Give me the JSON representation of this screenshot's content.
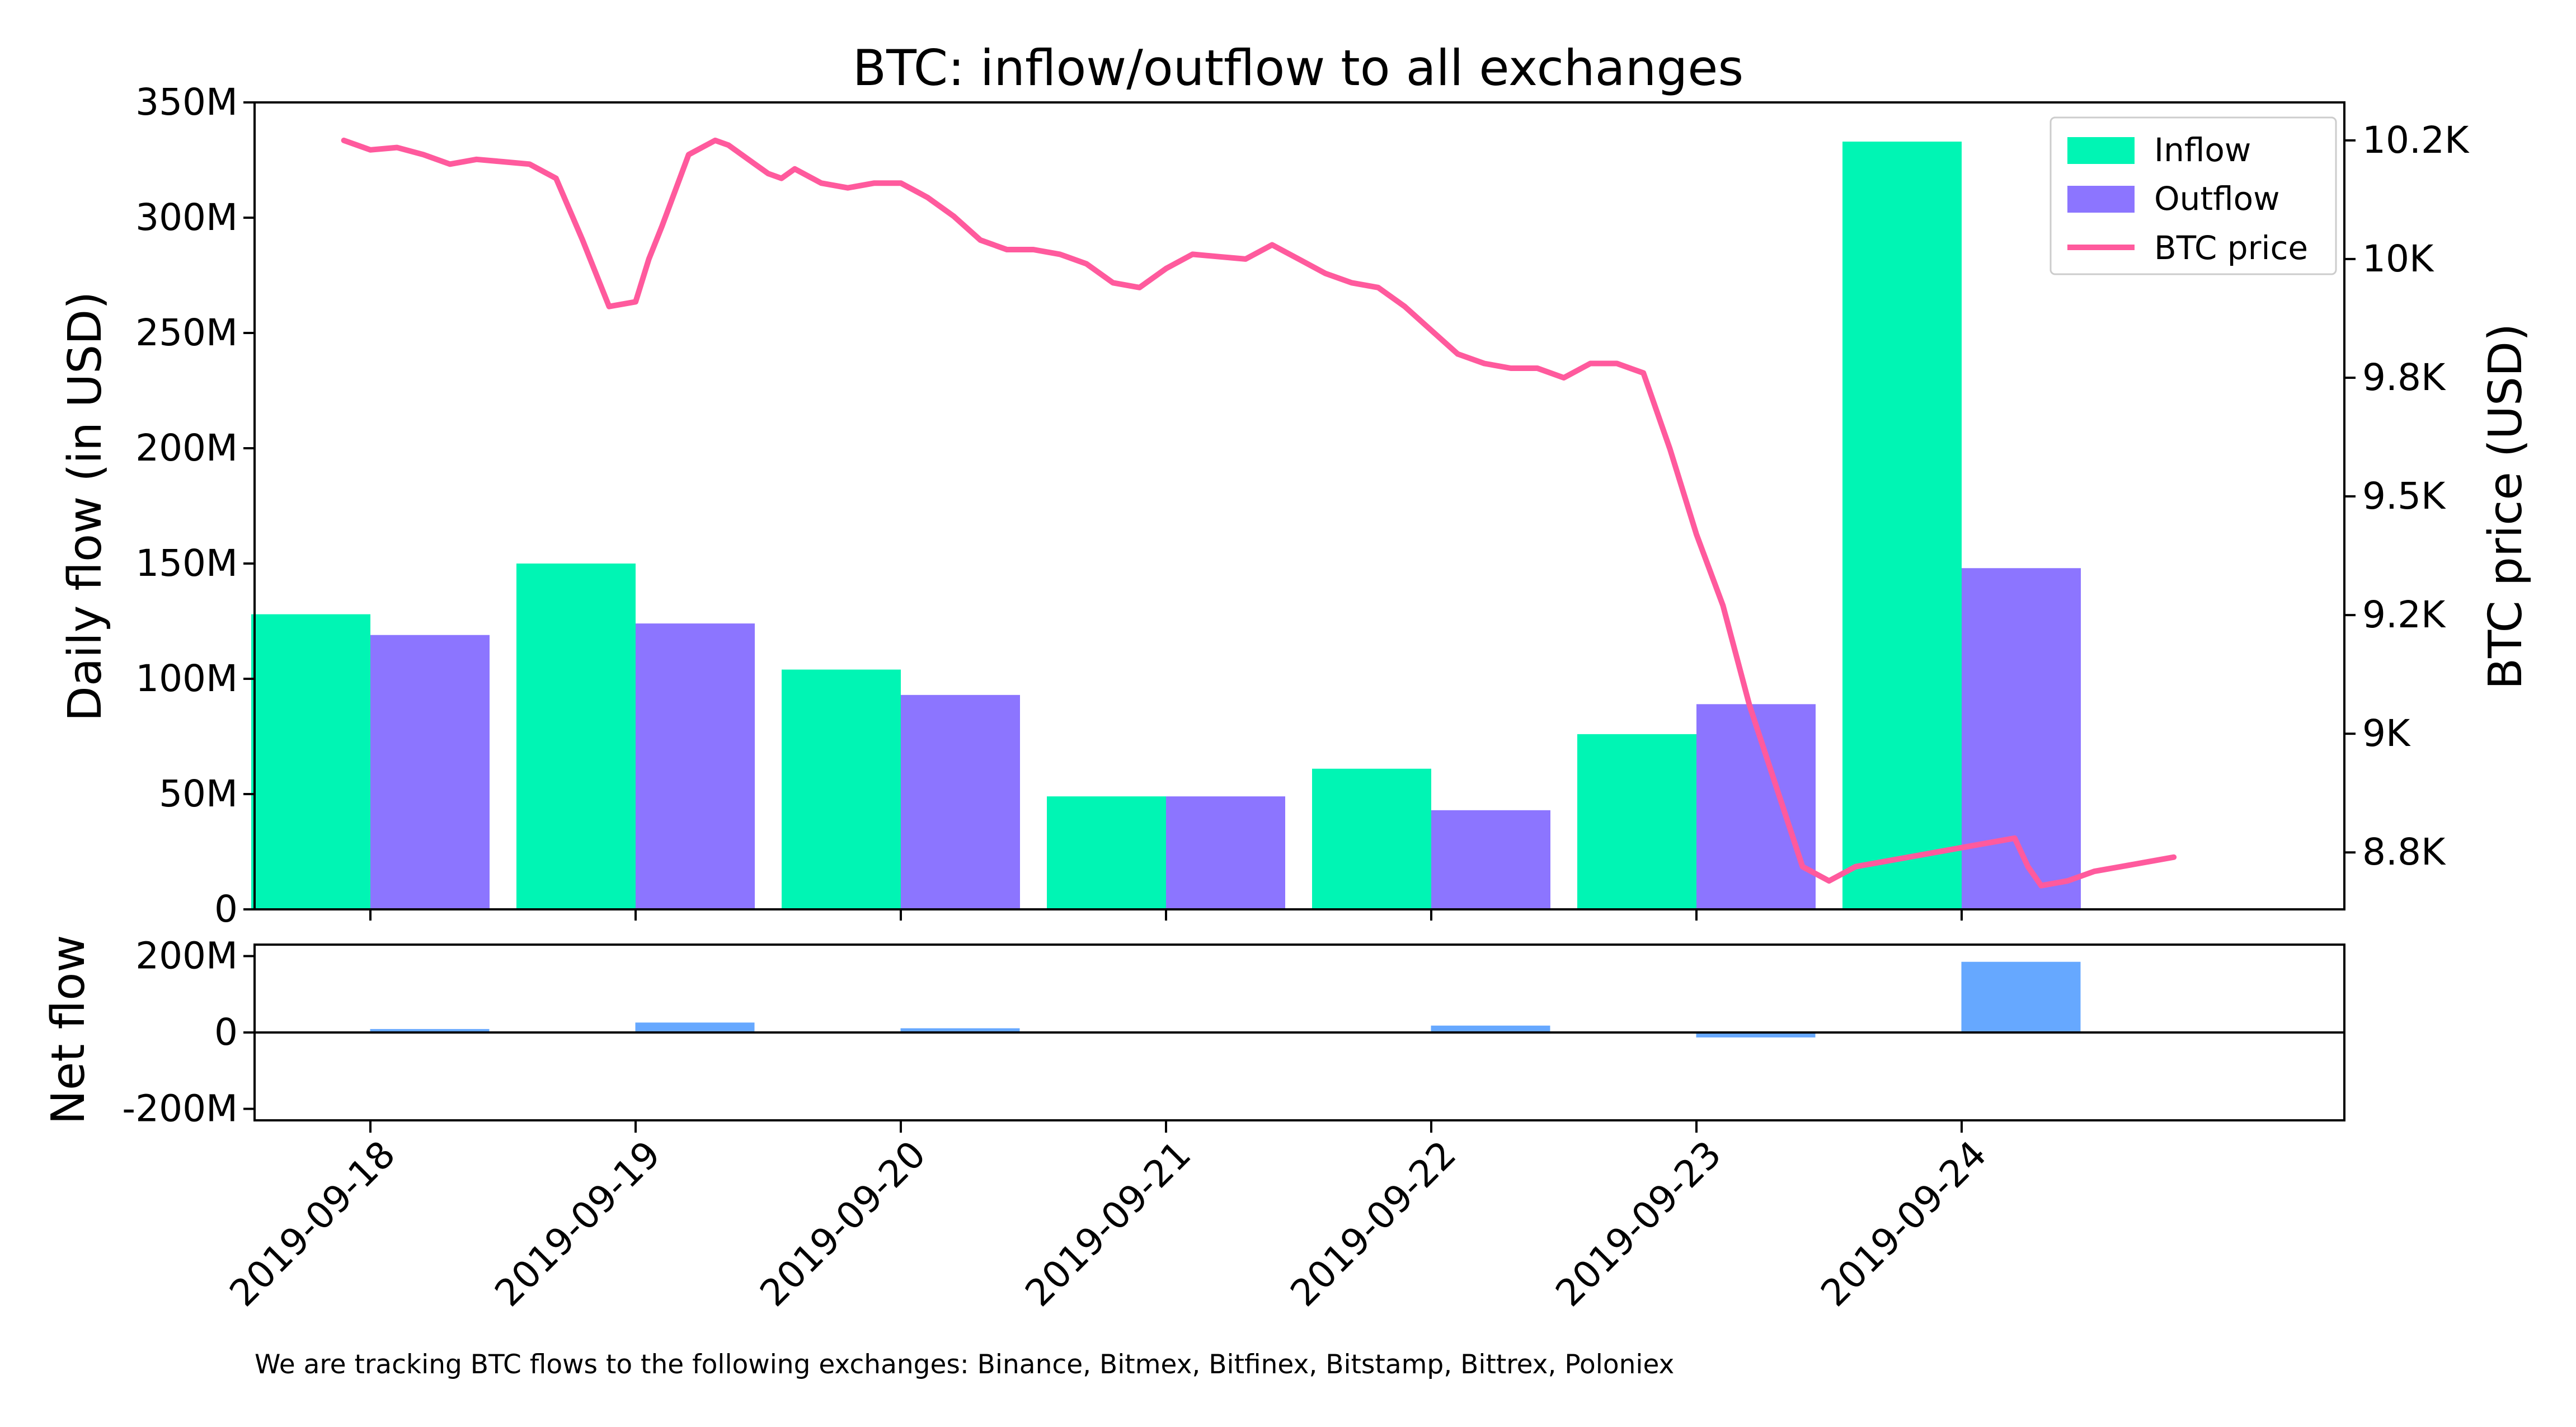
{
  "colors": {
    "inflow": "#00F5B4",
    "outflow": "#8C75FF",
    "price": "#FF5A9D",
    "netflow": "#66A8FF"
  },
  "chart_data": [
    {
      "type": "bar",
      "title": "BTC: inflow/outflow to all exchanges",
      "xlabel": "",
      "ylabel": "Daily flow (in USD)",
      "y2label": "BTC price (USD)",
      "categories": [
        "2019-09-18",
        "2019-09-19",
        "2019-09-20",
        "2019-09-21",
        "2019-09-22",
        "2019-09-23",
        "2019-09-24"
      ],
      "ylim": [
        0,
        350000000
      ],
      "y_ticks": [
        0,
        50000000,
        100000000,
        150000000,
        200000000,
        250000000,
        300000000,
        350000000
      ],
      "y_tick_labels": [
        "0",
        "50M",
        "100M",
        "150M",
        "200M",
        "250M",
        "300M",
        "350M"
      ],
      "y2lim": [
        8630,
        10330
      ],
      "y2_ticks": [
        8750,
        9000,
        9250,
        9500,
        9750,
        10000,
        10250
      ],
      "y2_tick_labels": [
        "8.8K",
        "9K",
        "9.2K",
        "9.5K",
        "9.8K",
        "10K",
        "10.2K"
      ],
      "legend_position": "top-right",
      "grid": false,
      "series": [
        {
          "name": "Inflow",
          "type": "bar",
          "values": [
            128000000,
            150000000,
            104000000,
            49000000,
            61000000,
            76000000,
            333000000
          ]
        },
        {
          "name": "Outflow",
          "type": "bar",
          "values": [
            119000000,
            124000000,
            93000000,
            49000000,
            43000000,
            89000000,
            148000000
          ]
        },
        {
          "name": "BTC price",
          "type": "line",
          "x": [
            -0.1,
            0.0,
            0.1,
            0.2,
            0.3,
            0.4,
            0.5,
            0.6,
            0.7,
            0.8,
            0.9,
            1.0,
            1.05,
            1.1,
            1.2,
            1.3,
            1.35,
            1.4,
            1.45,
            1.5,
            1.55,
            1.6,
            1.7,
            1.8,
            1.9,
            2.0,
            2.1,
            2.2,
            2.3,
            2.4,
            2.5,
            2.6,
            2.7,
            2.8,
            2.9,
            3.0,
            3.1,
            3.2,
            3.3,
            3.4,
            3.5,
            3.6,
            3.7,
            3.8,
            3.9,
            4.0,
            4.1,
            4.2,
            4.3,
            4.4,
            4.5,
            4.6,
            4.7,
            4.8,
            4.9,
            5.0,
            5.1,
            5.2,
            5.3,
            5.4,
            5.5,
            5.6,
            5.7,
            5.8,
            5.9,
            6.0,
            6.1,
            6.2,
            6.25,
            6.3,
            6.4,
            6.5,
            6.6,
            6.7,
            6.75,
            6.8
          ],
          "values": [
            10250,
            10230,
            10235,
            10220,
            10200,
            10210,
            10205,
            10200,
            10170,
            10040,
            9900,
            9910,
            10000,
            10070,
            10220,
            10250,
            10240,
            10220,
            10200,
            10180,
            10170,
            10190,
            10160,
            10150,
            10160,
            10160,
            10130,
            10090,
            10040,
            10020,
            10020,
            10010,
            9990,
            9950,
            9940,
            9980,
            10010,
            10005,
            10000,
            10030,
            10000,
            9970,
            9950,
            9940,
            9900,
            9850,
            9800,
            9780,
            9770,
            9770,
            9750,
            9780,
            9780,
            9760,
            9600,
            9420,
            9270,
            9060,
            8890,
            8720,
            8690,
            8720,
            8730,
            8740,
            8750,
            8760,
            8770,
            8780,
            8720,
            8680,
            8690,
            8710,
            8720,
            8730,
            8735,
            8740
          ]
        }
      ]
    },
    {
      "type": "bar",
      "ylabel": "Net flow",
      "categories": [
        "2019-09-18",
        "2019-09-19",
        "2019-09-20",
        "2019-09-21",
        "2019-09-22",
        "2019-09-23",
        "2019-09-24"
      ],
      "ylim": [
        -230000000,
        230000000
      ],
      "y_ticks": [
        -200000000,
        0,
        200000000
      ],
      "y_tick_labels": [
        "-200M",
        "0",
        "200M"
      ],
      "series": [
        {
          "name": "Net flow",
          "values": [
            9000000,
            26000000,
            11000000,
            0,
            18000000,
            -13000000,
            185000000
          ]
        }
      ]
    }
  ],
  "footnote": "We are tracking BTC flows to the following exchanges: Binance, Bitmex, Bitfinex, Bitstamp, Bittrex, Poloniex"
}
